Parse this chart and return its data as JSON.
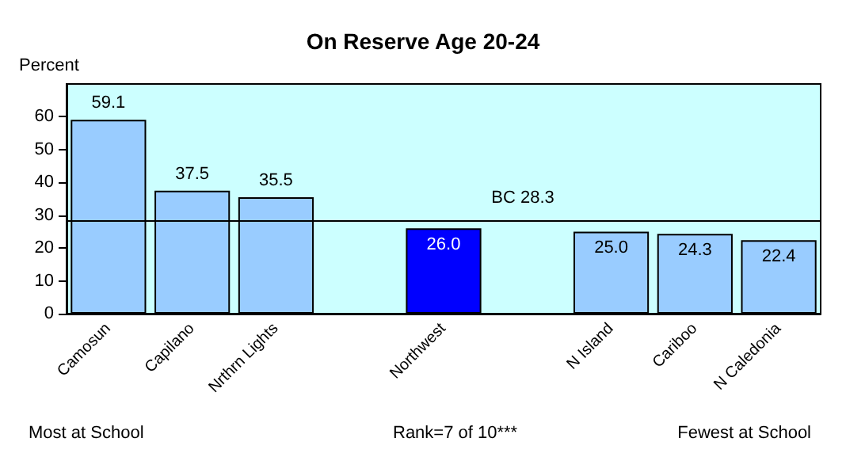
{
  "chart_data": {
    "type": "bar",
    "title": "On Reserve Age 20-24",
    "ylabel": "Percent",
    "categories": [
      "Camosun",
      "Capilano",
      "Nrthrn Lights",
      null,
      "Northwest",
      null,
      "N Island",
      "Cariboo",
      "N Caledonia"
    ],
    "values": [
      59.1,
      37.5,
      35.5,
      null,
      26.0,
      null,
      25.0,
      24.3,
      22.4
    ],
    "value_labels": [
      "59.1",
      "37.5",
      "35.5",
      null,
      "26.0",
      null,
      "25.0",
      "24.3",
      "22.4"
    ],
    "colors": [
      "#99ccff",
      "#99ccff",
      "#99ccff",
      "#99ccff",
      "#0000ff",
      "#99ccff",
      "#99ccff",
      "#99ccff",
      "#99ccff"
    ],
    "ylim": [
      0,
      70
    ],
    "yticks": [
      0,
      10,
      20,
      30,
      40,
      50,
      60
    ],
    "grid": false,
    "ref_lines": [
      {
        "axis": "y",
        "value": 28.3,
        "label": "BC 28.3",
        "color": "#000000"
      }
    ],
    "annotations": [
      "Most at School",
      "Rank=7 of 10***",
      "Fewest at School"
    ]
  }
}
